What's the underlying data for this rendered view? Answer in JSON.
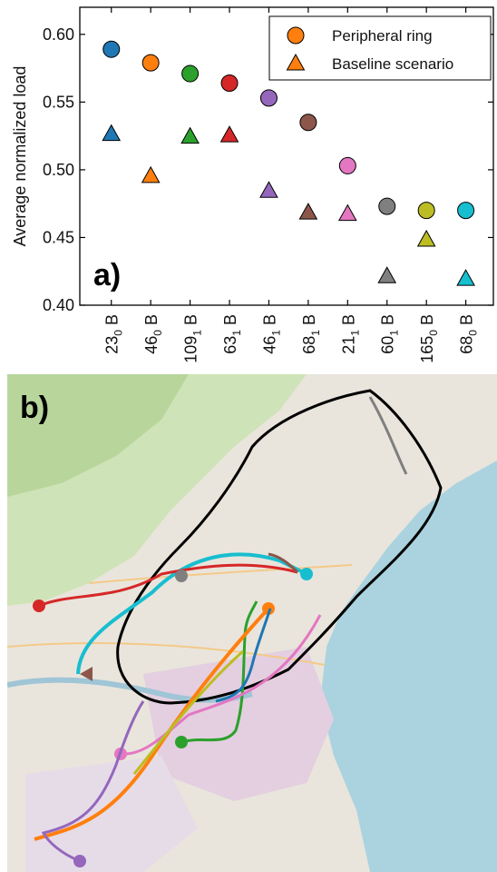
{
  "panel_a_label": "a)",
  "panel_b_label": "b)",
  "chart_data": {
    "type": "scatter",
    "title": "",
    "xlabel": "",
    "ylabel": "Average normalized load",
    "ylim": [
      0.4,
      0.62
    ],
    "yticks": [
      "0.40",
      "0.45",
      "0.50",
      "0.55",
      "0.60"
    ],
    "grid": false,
    "legend": "top-right",
    "categories": [
      {
        "prefix": "B",
        "num": "23",
        "sub": "0"
      },
      {
        "prefix": "B",
        "num": "46",
        "sub": "0"
      },
      {
        "prefix": "B",
        "num": "109",
        "sub": "1"
      },
      {
        "prefix": "B",
        "num": "63",
        "sub": "1"
      },
      {
        "prefix": "B",
        "num": "46",
        "sub": "1"
      },
      {
        "prefix": "B",
        "num": "68",
        "sub": "1"
      },
      {
        "prefix": "B",
        "num": "21",
        "sub": "1"
      },
      {
        "prefix": "B",
        "num": "60",
        "sub": "1"
      },
      {
        "prefix": "B",
        "num": "165",
        "sub": "0"
      },
      {
        "prefix": "B",
        "num": "68",
        "sub": "0"
      }
    ],
    "colors": [
      "#1f77b4",
      "#ff7f0e",
      "#2ca02c",
      "#d62728",
      "#9467bd",
      "#8c564b",
      "#e377c2",
      "#7f7f7f",
      "#bcbd22",
      "#17becf"
    ],
    "series": [
      {
        "name": "Peripheral ring",
        "marker": "circle",
        "values": [
          0.589,
          0.579,
          0.571,
          0.564,
          0.553,
          0.535,
          0.503,
          0.473,
          0.47,
          0.47
        ]
      },
      {
        "name": "Baseline scenario",
        "marker": "triangle",
        "values": [
          0.527,
          0.496,
          0.525,
          0.526,
          0.485,
          0.469,
          0.468,
          0.422,
          0.449,
          0.42
        ]
      }
    ]
  }
}
